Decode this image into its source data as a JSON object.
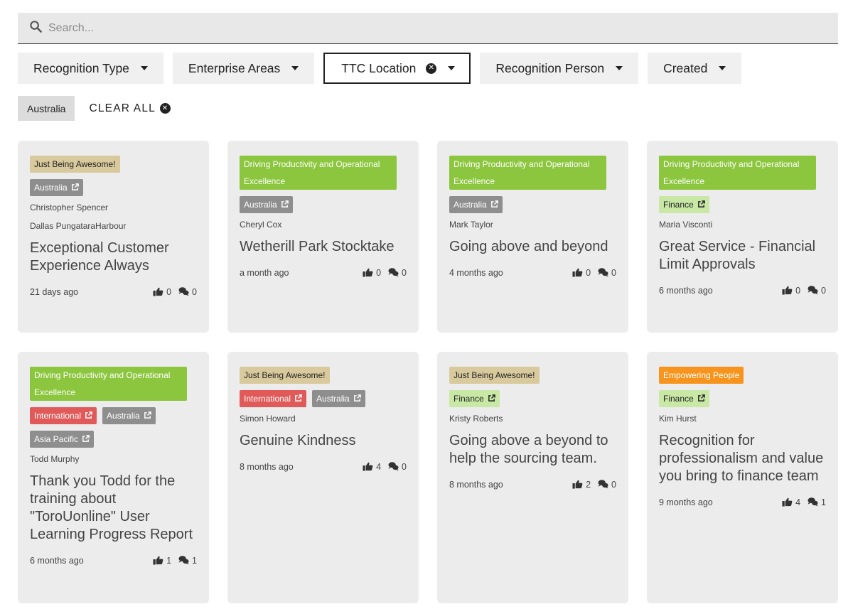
{
  "search": {
    "placeholder": "Search..."
  },
  "filters": [
    {
      "label": "Recognition Type",
      "active": false
    },
    {
      "label": "Enterprise Areas",
      "active": false
    },
    {
      "label": "TTC Location",
      "active": true
    },
    {
      "label": "Recognition Person",
      "active": false
    },
    {
      "label": "Created",
      "active": false
    }
  ],
  "active_filters": {
    "chip": "Australia",
    "clear_all": "CLEAR ALL"
  },
  "colors": {
    "awesome": "#d8ca9c",
    "driving": "#8cc63f",
    "empowering": "#f7941d",
    "location": "#8e8e8e",
    "international": "#e05a5a",
    "finance": "#c9e8a6"
  },
  "cards": [
    {
      "tags": [
        [
          "awesome",
          "Just Being Awesome!"
        ]
      ],
      "locations": [
        [
          "loc",
          "Australia"
        ]
      ],
      "people": [
        "Christopher Spencer",
        "Dallas PungataraHarbour"
      ],
      "title": "Exceptional Customer Experience Always",
      "time": "21 days ago",
      "likes": "0",
      "comments": "0"
    },
    {
      "tags": [
        [
          "driving",
          "Driving Productivity and Operational Excellence"
        ]
      ],
      "locations": [
        [
          "loc",
          "Australia"
        ]
      ],
      "people": [
        "Cheryl Cox"
      ],
      "title": "Wetherill Park Stocktake",
      "time": "a month ago",
      "likes": "0",
      "comments": "0"
    },
    {
      "tags": [
        [
          "driving",
          "Driving Productivity and Operational Excellence"
        ]
      ],
      "locations": [
        [
          "loc",
          "Australia"
        ]
      ],
      "people": [
        "Mark Taylor"
      ],
      "title": "Going above and beyond",
      "time": "4 months ago",
      "likes": "0",
      "comments": "0"
    },
    {
      "tags": [
        [
          "driving",
          "Driving Productivity and Operational Excellence"
        ]
      ],
      "locations": [
        [
          "fin",
          "Finance"
        ]
      ],
      "people": [
        "Maria Visconti"
      ],
      "title": "Great Service - Financial Limit Approvals",
      "time": "6 months ago",
      "likes": "0",
      "comments": "0"
    },
    {
      "tags": [
        [
          "driving",
          "Driving Productivity and Operational Excellence"
        ]
      ],
      "locations": [
        [
          "intl",
          "International"
        ],
        [
          "loc",
          "Australia"
        ],
        [
          "loc",
          "Asia Pacific"
        ]
      ],
      "people": [
        "Todd Murphy"
      ],
      "title": "Thank you Todd for the training about \"ToroUonline\" User Learning Progress Report",
      "time": "6 months ago",
      "likes": "1",
      "comments": "1"
    },
    {
      "tags": [
        [
          "awesome",
          "Just Being Awesome!"
        ]
      ],
      "locations": [
        [
          "intl",
          "International"
        ],
        [
          "loc",
          "Australia"
        ]
      ],
      "people": [
        "Simon Howard"
      ],
      "title": "Genuine Kindness",
      "time": "8 months ago",
      "likes": "4",
      "comments": "0"
    },
    {
      "tags": [
        [
          "awesome",
          "Just Being Awesome!"
        ]
      ],
      "locations": [
        [
          "fin",
          "Finance"
        ]
      ],
      "people": [
        "Kristy Roberts"
      ],
      "title": "Going above a beyond to help the sourcing team.",
      "time": "8 months ago",
      "likes": "2",
      "comments": "0"
    },
    {
      "tags": [
        [
          "empower",
          "Empowering People"
        ]
      ],
      "locations": [
        [
          "fin",
          "Finance"
        ]
      ],
      "people": [
        "Kim Hurst"
      ],
      "title": "Recognition for professionalism and value you bring to finance team",
      "time": "9 months ago",
      "likes": "4",
      "comments": "1"
    }
  ]
}
